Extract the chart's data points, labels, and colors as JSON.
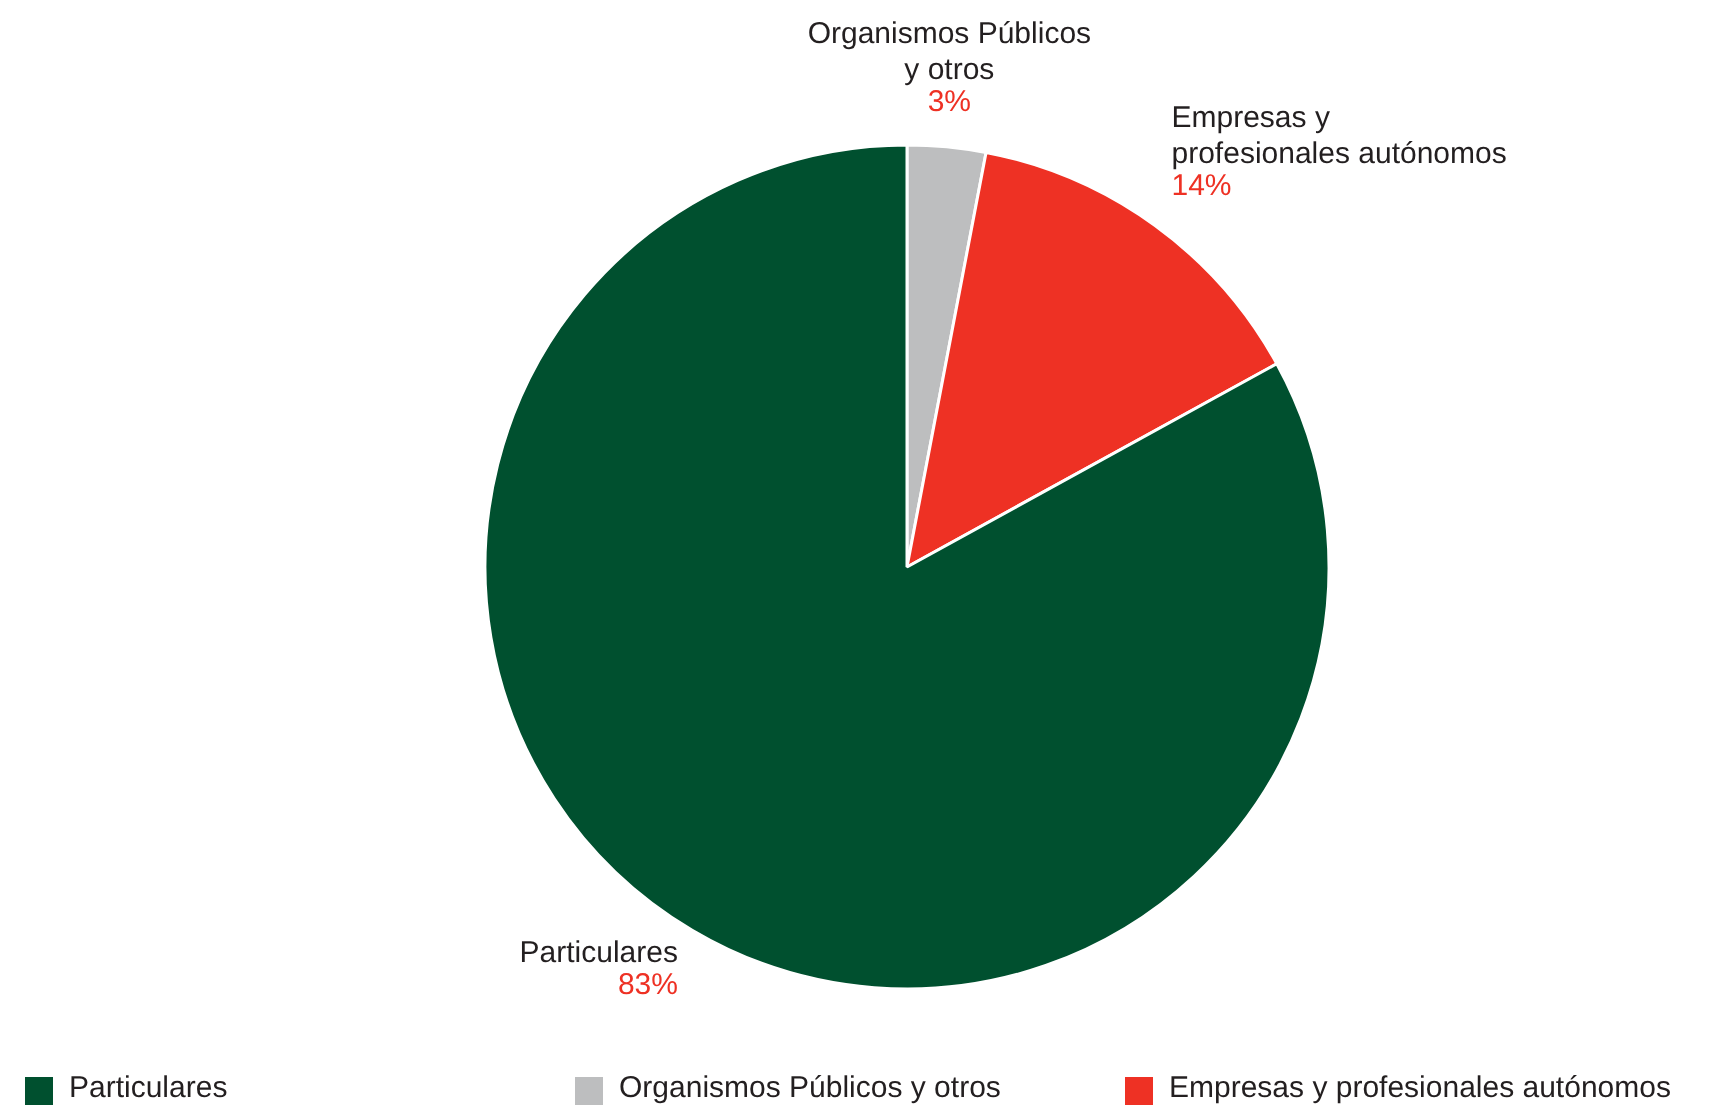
{
  "chart_data": {
    "type": "pie",
    "categories": [
      "Organismos Públicos\ny otros",
      "Empresas y\nprofesionales autónomos",
      "Particulares"
    ],
    "values": [
      3,
      14,
      83
    ],
    "colors": [
      "#bdbebf",
      "#ee3124",
      "#00502f"
    ],
    "value_labels": [
      "3%",
      "14%",
      "83%"
    ],
    "legend": "bottom"
  }
}
